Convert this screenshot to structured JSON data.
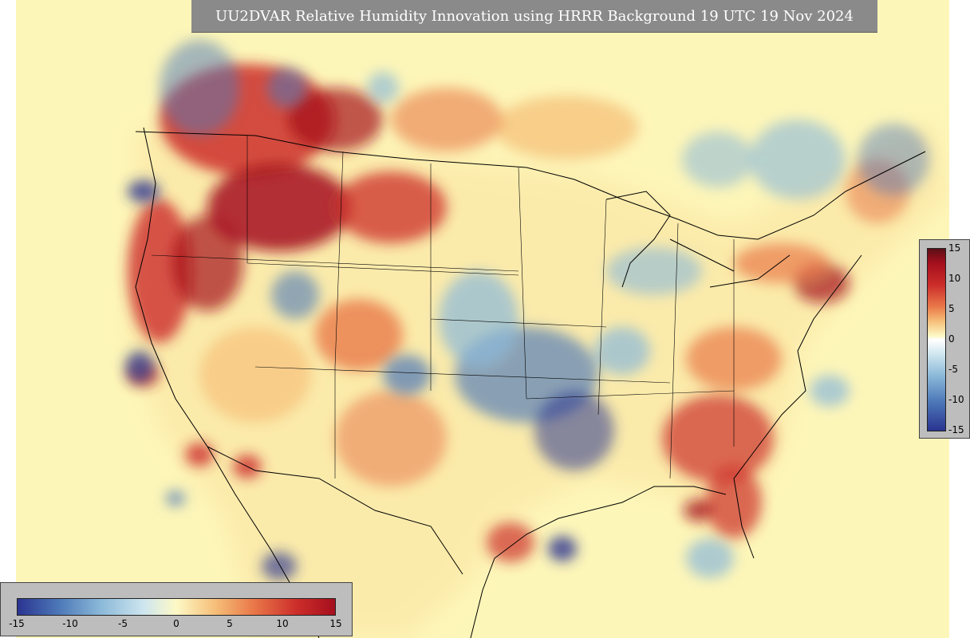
{
  "title": "UU2DVAR Relative Humidity Innovation using HRRR Background 19 UTC 19 Nov 2024",
  "colors": {
    "background": "#fdf6b9",
    "neg_strong": "#2a3490",
    "neg_mid": "#4d78b8",
    "neg_light": "#8ab8d8",
    "pos_light": "#f6c07a",
    "pos_mid": "#ea7a4a",
    "pos_strong": "#cc2d2a",
    "pos_max": "#a50f1d"
  },
  "colorbar_horizontal": {
    "ticks": [
      "-15",
      "-10",
      "-5",
      "0",
      "5",
      "10",
      "15"
    ]
  },
  "colorbar_vertical": {
    "ticks": [
      "15",
      "10",
      "5",
      "0",
      "-5",
      "-10",
      "-15"
    ]
  },
  "map": {
    "region": "CONUS",
    "field": "relative humidity innovation"
  }
}
